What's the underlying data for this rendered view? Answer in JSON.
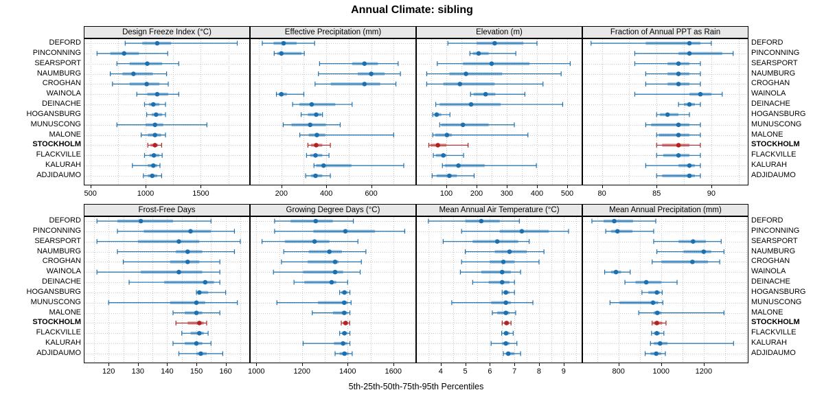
{
  "title": "Annual Climate: sibling",
  "xlabel": "5th-25th-50th-75th-95th Percentiles",
  "percentile_labels": [
    "5th",
    "25th",
    "50th",
    "75th",
    "95th"
  ],
  "highlight_site": "STOCKHOLM",
  "colors": {
    "blue": "#1c70b0",
    "blue_box": "rgba(28,112,176,0.45)",
    "red": "#b22222",
    "red_box": "rgba(178,34,34,0.45)",
    "grid": "#c9c9c9",
    "strip_bg": "#e8e8e8",
    "panel_border": "#000000",
    "background": "#ffffff"
  },
  "sites": [
    "DEFORD",
    "PINCONNING",
    "SEARSPORT",
    "NAUMBURG",
    "CROGHAN",
    "WAINOLA",
    "DEINACHE",
    "HOGANSBURG",
    "MUNUSCONG",
    "MALONE",
    "STOCKHOLM",
    "FLACKVILLE",
    "KALURAH",
    "ADJIDAUMO"
  ],
  "chart_data": {
    "type": "dotplot-percentiles",
    "layout": {
      "rows": 2,
      "cols": 4,
      "grid": "dotted",
      "legend": "none",
      "site_labels": "both-sides",
      "axis_labels": "below-each-row"
    },
    "panels": [
      {
        "title": "Design Freeze Index (°C)",
        "row": 0,
        "col": 0,
        "xlim": [
          440,
          1945
        ],
        "ticks": [
          500,
          1000,
          1500
        ],
        "minor_step": 250,
        "values": {
          "DEFORD": [
            815,
            970,
            1105,
            1230,
            1830
          ],
          "PINCONNING": [
            560,
            680,
            805,
            940,
            1200
          ],
          "SEARSPORT": [
            740,
            855,
            1015,
            1150,
            1300
          ],
          "NAUMBURG": [
            680,
            790,
            890,
            1065,
            1190
          ],
          "CROGHAN": [
            700,
            855,
            1010,
            1125,
            1205
          ],
          "WAINOLA": [
            920,
            1015,
            1105,
            1205,
            1300
          ],
          "DEINACHE": [
            990,
            1030,
            1070,
            1125,
            1180
          ],
          "HOGANSBURG": [
            1010,
            1055,
            1095,
            1150,
            1180
          ],
          "MUNUSCONG": [
            740,
            1000,
            1085,
            1160,
            1555
          ],
          "MALONE": [
            960,
            1020,
            1085,
            1140,
            1180
          ],
          "STOCKHOLM": [
            1020,
            1045,
            1085,
            1110,
            1145
          ],
          "FLACKVILLE": [
            990,
            1035,
            1075,
            1125,
            1150
          ],
          "KALURAH": [
            880,
            1020,
            1070,
            1105,
            1130
          ],
          "ADJIDAUMO": [
            980,
            1020,
            1060,
            1105,
            1145
          ]
        }
      },
      {
        "title": "Effective Precipitation (mm)",
        "row": 0,
        "col": 1,
        "xlim": [
          60,
          800
        ],
        "ticks": [
          200,
          400,
          600
        ],
        "minor_step": 100,
        "values": {
          "DEFORD": [
            115,
            165,
            210,
            268,
            348
          ],
          "PINCONNING": [
            168,
            182,
            200,
            290,
            302
          ],
          "SEARSPORT": [
            370,
            515,
            570,
            630,
            720
          ],
          "NAUMBURG": [
            365,
            540,
            600,
            660,
            730
          ],
          "CROGHAN": [
            350,
            420,
            570,
            640,
            710
          ],
          "WAINOLA": [
            178,
            188,
            200,
            225,
            300
          ],
          "DEINACHE": [
            250,
            280,
            335,
            440,
            515
          ],
          "HOGANSBURG": [
            288,
            318,
            355,
            378,
            383
          ],
          "MUNUSCONG": [
            208,
            245,
            328,
            398,
            462
          ],
          "MALONE": [
            282,
            322,
            358,
            395,
            700
          ],
          "STOCKHOLM": [
            318,
            332,
            355,
            382,
            418
          ],
          "FLACKVILLE": [
            312,
            328,
            352,
            382,
            412
          ],
          "KALURAH": [
            345,
            355,
            388,
            512,
            745
          ],
          "ADJIDAUMO": [
            308,
            332,
            352,
            382,
            418
          ]
        }
      },
      {
        "title": "Elevation (m)",
        "row": 0,
        "col": 2,
        "xlim": [
          0,
          550
        ],
        "ticks": [
          100,
          200,
          300,
          400,
          500
        ],
        "minor_step": 50,
        "values": {
          "DEFORD": [
            105,
            200,
            260,
            355,
            400
          ],
          "PINCONNING": [
            178,
            188,
            207,
            240,
            330
          ],
          "SEARSPORT": [
            70,
            155,
            250,
            375,
            510
          ],
          "NAUMBURG": [
            35,
            110,
            165,
            285,
            480
          ],
          "CROGHAN": [
            35,
            90,
            145,
            260,
            420
          ],
          "WAINOLA": [
            180,
            190,
            230,
            262,
            360
          ],
          "DEINACHE": [
            65,
            78,
            182,
            280,
            485
          ],
          "HOGANSBURG": [
            55,
            60,
            68,
            83,
            112
          ],
          "MUNUSCONG": [
            78,
            83,
            155,
            240,
            325
          ],
          "MALONE": [
            55,
            63,
            102,
            118,
            370
          ],
          "STOCKHOLM": [
            42,
            48,
            72,
            100,
            172
          ],
          "FLACKVILLE": [
            57,
            65,
            90,
            100,
            157
          ],
          "KALURAH": [
            87,
            95,
            140,
            227,
            398
          ],
          "ADJIDAUMO": [
            53,
            68,
            110,
            135,
            192
          ]
        }
      },
      {
        "title": "Fraction of Annual PPT as Rain",
        "row": 0,
        "col": 3,
        "xlim": [
          78.2,
          93.4
        ],
        "ticks": [
          80,
          85,
          90
        ],
        "minor_step": 2.5,
        "values": {
          "DEFORD": [
            79,
            84,
            88,
            89,
            90
          ],
          "PINCONNING": [
            83,
            87,
            88,
            91,
            92
          ],
          "SEARSPORT": [
            83,
            86,
            87,
            88,
            89
          ],
          "NAUMBURG": [
            84,
            86,
            87,
            88,
            89
          ],
          "CROGHAN": [
            84,
            86,
            87,
            88,
            89
          ],
          "WAINOLA": [
            83,
            88,
            89,
            90,
            91
          ],
          "DEINACHE": [
            87,
            87.5,
            88,
            88.5,
            89
          ],
          "HOGANSBURG": [
            85,
            85.3,
            86,
            87,
            88
          ],
          "MUNUSCONG": [
            84,
            84.5,
            87,
            88,
            89
          ],
          "MALONE": [
            85,
            85.2,
            87,
            88,
            89
          ],
          "STOCKHOLM": [
            85,
            85.5,
            87,
            88,
            89
          ],
          "FLACKVILLE": [
            85,
            85.6,
            87,
            88,
            89
          ],
          "KALURAH": [
            84,
            87,
            88,
            88.5,
            89
          ],
          "ADJIDAUMO": [
            85,
            85.5,
            88,
            88.5,
            89
          ]
        }
      },
      {
        "title": "Frost-Free Days",
        "row": 1,
        "col": 0,
        "xlim": [
          111.5,
          168.3
        ],
        "ticks": [
          120,
          130,
          140,
          150,
          160
        ],
        "minor_step": 5,
        "values": {
          "DEFORD": [
            116,
            123,
            131,
            142,
            155
          ],
          "PINCONNING": [
            123,
            132,
            148,
            155,
            163
          ],
          "SEARSPORT": [
            116,
            130,
            144,
            151,
            165
          ],
          "NAUMBURG": [
            123,
            143,
            147,
            152,
            163
          ],
          "CROGHAN": [
            125,
            141,
            147,
            151,
            158
          ],
          "WAINOLA": [
            116,
            131,
            144,
            152,
            158
          ],
          "DEINACHE": [
            127,
            139,
            153,
            156,
            158
          ],
          "HOGANSBURG": [
            150,
            150.5,
            151,
            154,
            160
          ],
          "MUNUSCONG": [
            120,
            141,
            150,
            153,
            164
          ],
          "MALONE": [
            142,
            146,
            150,
            152,
            158
          ],
          "STOCKHOLM": [
            143,
            147,
            151,
            152.5,
            153.5
          ],
          "FLACKVILLE": [
            145,
            148,
            151,
            152.5,
            154
          ],
          "KALURAH": [
            142,
            146,
            150,
            152,
            155
          ],
          "ADJIDAUMO": [
            144,
            150,
            151.5,
            153.5,
            159
          ]
        }
      },
      {
        "title": "Growing Degree Days (°C)",
        "row": 1,
        "col": 1,
        "xlim": [
          972,
          1700
        ],
        "ticks": [
          1000,
          1200,
          1400,
          1600
        ],
        "minor_step": 100,
        "values": {
          "DEFORD": [
            1080,
            1150,
            1260,
            1335,
            1425
          ],
          "PINCONNING": [
            1080,
            1250,
            1390,
            1520,
            1650
          ],
          "SEARSPORT": [
            1025,
            1125,
            1255,
            1320,
            1445
          ],
          "NAUMBURG": [
            1120,
            1230,
            1320,
            1375,
            1480
          ],
          "CROGHAN": [
            1110,
            1225,
            1345,
            1360,
            1460
          ],
          "WAINOLA": [
            1075,
            1205,
            1345,
            1380,
            1455
          ],
          "DEINACHE": [
            1165,
            1210,
            1330,
            1350,
            1400
          ],
          "HOGANSBURG": [
            1365,
            1372,
            1386,
            1398,
            1410
          ],
          "MUNUSCONG": [
            1090,
            1270,
            1385,
            1400,
            1415
          ],
          "MALONE": [
            1245,
            1335,
            1385,
            1398,
            1410
          ],
          "STOCKHOLM": [
            1372,
            1380,
            1391,
            1400,
            1409
          ],
          "FLACKVILLE": [
            1365,
            1375,
            1386,
            1398,
            1410
          ],
          "KALURAH": [
            1205,
            1340,
            1380,
            1398,
            1410
          ],
          "ADJIDAUMO": [
            1345,
            1365,
            1386,
            1404,
            1420
          ]
        }
      },
      {
        "title": "Mean Annual Air Temperature (°C)",
        "row": 1,
        "col": 2,
        "xlim": [
          3.0,
          9.76
        ],
        "ticks": [
          4,
          5,
          6,
          7,
          8,
          9
        ],
        "minor_step": 0.5,
        "values": {
          "DEFORD": [
            3.5,
            5.0,
            5.65,
            6.4,
            7.2
          ],
          "PINCONNING": [
            4.85,
            6.4,
            7.3,
            8.4,
            9.2
          ],
          "SEARSPORT": [
            4.1,
            5.3,
            6.3,
            7.15,
            7.6
          ],
          "NAUMBURG": [
            5.0,
            6.2,
            6.8,
            7.5,
            8.2
          ],
          "CROGHAN": [
            4.85,
            6.0,
            6.55,
            7.0,
            8.0
          ],
          "WAINOLA": [
            4.8,
            5.65,
            6.5,
            6.85,
            7.25
          ],
          "DEINACHE": [
            5.3,
            5.95,
            6.5,
            6.8,
            7.0
          ],
          "HOGANSBURG": [
            6.5,
            6.55,
            6.65,
            6.8,
            7.0
          ],
          "MUNUSCONG": [
            4.45,
            6.05,
            6.65,
            6.85,
            7.75
          ],
          "MALONE": [
            6.1,
            6.3,
            6.65,
            6.8,
            7.05
          ],
          "STOCKHOLM": [
            6.5,
            6.58,
            6.68,
            6.78,
            6.86
          ],
          "FLACKVILLE": [
            6.48,
            6.56,
            6.66,
            6.8,
            6.95
          ],
          "KALURAH": [
            6.05,
            6.5,
            6.65,
            6.8,
            7.1
          ],
          "ADJIDAUMO": [
            6.55,
            6.65,
            6.75,
            7.0,
            7.25
          ]
        }
      },
      {
        "title": "Mean Annual Precipitation (mm)",
        "row": 1,
        "col": 3,
        "xlim": [
          630,
          1410
        ],
        "ticks": [
          800,
          1000,
          1200
        ],
        "minor_step": 100,
        "values": {
          "DEFORD": [
            675,
            730,
            780,
            868,
            975
          ],
          "PINCONNING": [
            740,
            765,
            795,
            865,
            965
          ],
          "SEARSPORT": [
            965,
            1082,
            1150,
            1210,
            1282
          ],
          "NAUMBURG": [
            980,
            1105,
            1200,
            1235,
            1295
          ],
          "CROGHAN": [
            958,
            1002,
            1147,
            1220,
            1275
          ],
          "WAINOLA": [
            735,
            765,
            788,
            812,
            855
          ],
          "DEINACHE": [
            830,
            880,
            930,
            1000,
            1075
          ],
          "HOGANSBURG": [
            910,
            940,
            980,
            995,
            1005
          ],
          "MUNUSCONG": [
            760,
            805,
            962,
            987,
            1008
          ],
          "MALONE": [
            895,
            965,
            982,
            1000,
            1295
          ],
          "STOCKHOLM": [
            958,
            963,
            980,
            1005,
            1023
          ],
          "FLACKVILLE": [
            955,
            965,
            980,
            995,
            1013
          ],
          "KALURAH": [
            950,
            966,
            995,
            1030,
            1340
          ],
          "ADJIDAUMO": [
            925,
            950,
            977,
            1000,
            1020
          ]
        }
      }
    ]
  }
}
